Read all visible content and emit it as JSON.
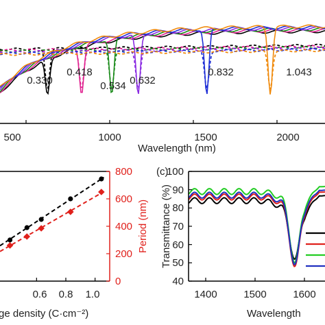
{
  "chart_data": [
    {
      "type": "line",
      "panel": "",
      "xlabel": "Wavelength (nm)",
      "ylabel": "",
      "xlim": [
        400,
        2080
      ],
      "ylim": [
        0,
        1
      ],
      "x_ticks": [
        "500",
        "1000",
        "1500",
        "2000"
      ],
      "series": [
        {
          "label": "0.330",
          "color": "#000000",
          "dip_nm": 628
        },
        {
          "label": "0.418",
          "color": "#e0208f",
          "dip_nm": 832
        },
        {
          "label": "0.534",
          "color": "#1a8a1a",
          "dip_nm": 1012
        },
        {
          "label": "0.632",
          "color": "#8a2be2",
          "dip_nm": 1170
        },
        {
          "label": "0.832",
          "color": "#1f2fd6",
          "dip_nm": 1580
        },
        {
          "label": "1.043",
          "color": "#f08a0c",
          "dip_nm": 1960
        }
      ]
    },
    {
      "type": "scatter",
      "panel": "",
      "xlabel": "ge density (C·cm⁻²)",
      "ylabel": "",
      "y2label": "Period (nm)",
      "xlim": [
        0.35,
        1.1
      ],
      "x_ticks": [
        "0.6",
        "0.8",
        "1.0"
      ],
      "y2lim": [
        0,
        800
      ],
      "y2_ticks": [
        "0",
        "200",
        "400",
        "600",
        "800"
      ],
      "series": [
        {
          "name": "",
          "color": "#000000",
          "axis": "left",
          "x": [
            0.33,
            0.418,
            0.534,
            0.632,
            0.832,
            1.043
          ],
          "y": [
            250,
            300,
            390,
            450,
            600,
            745
          ]
        },
        {
          "name": "",
          "color": "#e0201b",
          "axis": "right",
          "x": [
            0.33,
            0.418,
            0.534,
            0.632,
            0.832,
            1.043
          ],
          "y": [
            210,
            260,
            325,
            385,
            505,
            650
          ]
        }
      ]
    },
    {
      "type": "line",
      "panel": "(c)",
      "xlabel": "Wavelength",
      "ylabel": "Transmittance (%)",
      "xlim": [
        1400,
        1680
      ],
      "ylim": [
        40,
        100
      ],
      "x_ticks": [
        "1400",
        "1500",
        "1600"
      ],
      "y_ticks": [
        "40",
        "50",
        "60",
        "70",
        "80",
        "90",
        "100"
      ],
      "series": [
        {
          "name": "",
          "color": "#000000",
          "base": 84,
          "min": 52
        },
        {
          "name": "",
          "color": "#e0201b",
          "base": 86,
          "min": 48
        },
        {
          "name": "",
          "color": "#22cc22",
          "base": 89,
          "min": 50
        },
        {
          "name": "",
          "color": "#2030c0",
          "base": 87,
          "min": 49
        }
      ]
    }
  ],
  "axes": {
    "a": {
      "xlabel": "Wavelength (nm)",
      "ticks": [
        "500",
        "1000",
        "1500",
        "2000"
      ]
    },
    "b": {
      "xlabel": "ge density (C·cm⁻²)",
      "xticks": [
        "0.6",
        "0.8",
        "1.0"
      ],
      "y2label": "Period (nm)",
      "y2ticks": [
        "800",
        "600",
        "400",
        "200",
        "0"
      ]
    },
    "c": {
      "panel": "(c)",
      "ylabel": "Transmittance (%)",
      "xlabel": "Wavelength",
      "xticks": [
        "1400",
        "1500",
        "1600"
      ],
      "yticks": [
        "100",
        "90",
        "80",
        "70",
        "60",
        "50",
        "40"
      ]
    }
  },
  "dip_labels": [
    "0.330",
    "0.418",
    "0.534",
    "0.632",
    "0.832",
    "1.043"
  ]
}
